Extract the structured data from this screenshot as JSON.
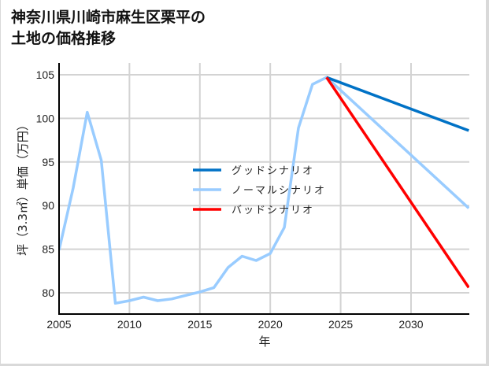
{
  "title_line1": "神奈川県川崎市麻生区栗平の",
  "title_line2": "土地の価格推移",
  "chart_data": {
    "type": "line",
    "title": "神奈川県川崎市麻生区栗平の土地の価格推移",
    "xlabel": "年",
    "ylabel": "坪（3.3㎡）単価（万円）",
    "xlim": [
      2005,
      2034.1
    ],
    "ylim": [
      77.5,
      106.5
    ],
    "xticks": [
      2005,
      2010,
      2015,
      2020,
      2025,
      2030
    ],
    "yticks": [
      80,
      85,
      90,
      95,
      100,
      105
    ],
    "grid": true,
    "legend_position": "center",
    "series": [
      {
        "name": "グッドシナリオ",
        "color": "#0072c6",
        "x": [
          2024,
          2034.1
        ],
        "values": [
          104.7,
          98.6
        ]
      },
      {
        "name": "ノーマルシナリオ",
        "color": "#99ccff",
        "x": [
          2005,
          2006,
          2007,
          2008,
          2009,
          2010,
          2011,
          2012,
          2013,
          2014,
          2015,
          2016,
          2017,
          2018,
          2019,
          2020,
          2021,
          2022,
          2023,
          2024,
          2034.1
        ],
        "values": [
          84.9,
          92.0,
          100.7,
          95.2,
          78.8,
          79.1,
          79.5,
          79.1,
          79.3,
          79.7,
          80.1,
          80.6,
          82.9,
          84.2,
          83.7,
          84.5,
          87.5,
          98.9,
          103.9,
          104.7,
          89.7
        ]
      },
      {
        "name": "バッドシナリオ",
        "color": "#ff0000",
        "x": [
          2024,
          2034.1
        ],
        "values": [
          104.7,
          80.6
        ]
      }
    ]
  }
}
